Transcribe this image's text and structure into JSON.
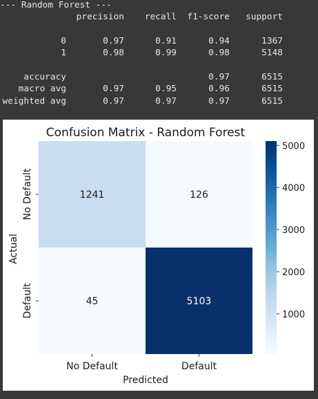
{
  "report": {
    "header_line": "--- Random Forest ---",
    "columns": [
      "precision",
      "recall",
      "f1-score",
      "support"
    ],
    "rows": [
      {
        "label": "0",
        "precision": "0.97",
        "recall": "0.91",
        "f1": "0.94",
        "support": "1367"
      },
      {
        "label": "1",
        "precision": "0.98",
        "recall": "0.99",
        "f1": "0.98",
        "support": "5148"
      },
      {
        "label": "accuracy",
        "precision": "",
        "recall": "",
        "f1": "0.97",
        "support": "6515"
      },
      {
        "label": "macro avg",
        "precision": "0.97",
        "recall": "0.95",
        "f1": "0.96",
        "support": "6515"
      },
      {
        "label": "weighted avg",
        "precision": "0.97",
        "recall": "0.97",
        "f1": "0.97",
        "support": "6515"
      }
    ]
  },
  "chart_data": {
    "type": "heatmap",
    "title": "Confusion Matrix - Random Forest",
    "xlabel": "Predicted",
    "ylabel": "Actual",
    "x_categories": [
      "No Default",
      "Default"
    ],
    "y_categories": [
      "No Default",
      "Default"
    ],
    "values": [
      [
        1241,
        126
      ],
      [
        45,
        5103
      ]
    ],
    "colormap": "Blues",
    "colorbar": {
      "range": [
        45,
        5103
      ],
      "ticks": [
        1000,
        2000,
        3000,
        4000,
        5000
      ],
      "low_color": "#f7fbff",
      "high_color": "#08306b"
    },
    "grid": false
  }
}
